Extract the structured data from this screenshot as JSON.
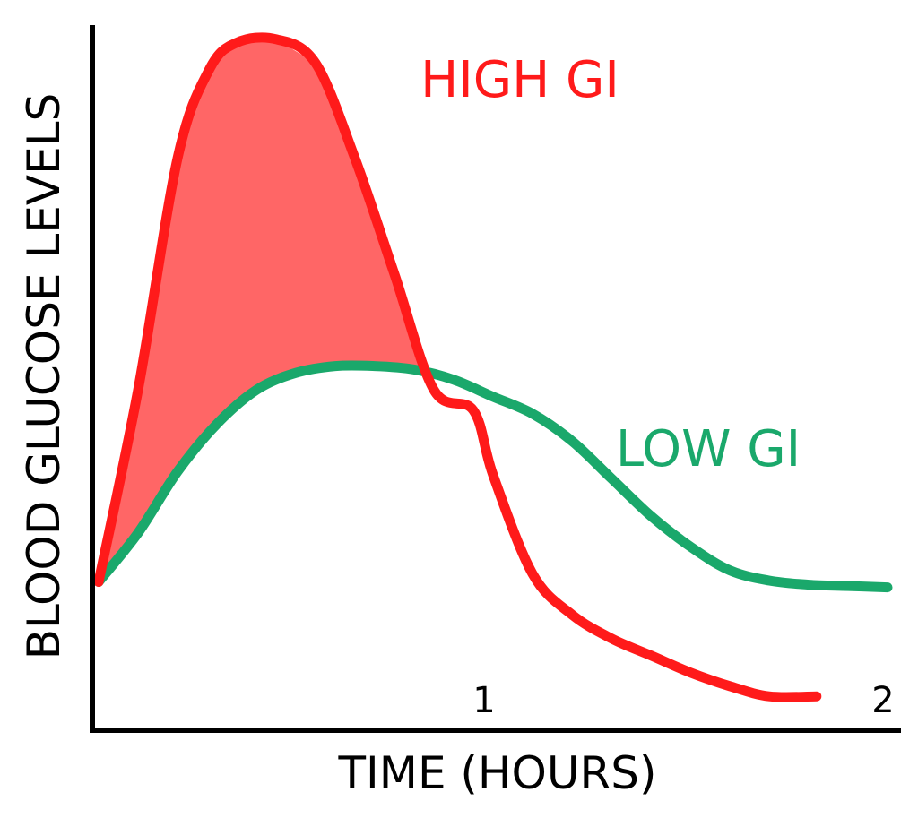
{
  "chart_data": {
    "type": "line",
    "title": "",
    "xlabel": "TIME (HOURS)",
    "ylabel": "BLOOD GLUCOSE LEVELS",
    "x_ticks": [
      {
        "value": 1,
        "label": "1"
      },
      {
        "value": 2,
        "label": "2"
      }
    ],
    "y_ticks": [],
    "xlim": [
      0,
      2
    ],
    "ylim": [
      0,
      100
    ],
    "grid": false,
    "legend": "none",
    "shaded_between": [
      "HIGH GI",
      "LOW GI"
    ],
    "series": [
      {
        "name": "HIGH GI",
        "color": "#ff1a1a",
        "fill": "#ff6666",
        "x": [
          0.0,
          0.1,
          0.2,
          0.28,
          0.35,
          0.45,
          0.55,
          0.65,
          0.75,
          0.85,
          0.95,
          1.0,
          1.1,
          1.2,
          1.3,
          1.4,
          1.5,
          1.6,
          1.7,
          1.82
        ],
        "y": [
          19.8,
          48.0,
          82.0,
          95.0,
          99.0,
          99.5,
          96.0,
          82.0,
          65.0,
          48.0,
          45.0,
          35.5,
          21.0,
          15.0,
          11.5,
          9.0,
          6.5,
          4.5,
          3.0,
          3.0
        ]
      },
      {
        "name": "LOW GI",
        "color": "#1aa86b",
        "x": [
          0.0,
          0.1,
          0.2,
          0.3,
          0.4,
          0.5,
          0.6,
          0.7,
          0.8,
          0.9,
          1.0,
          1.1,
          1.2,
          1.3,
          1.4,
          1.5,
          1.6,
          1.7,
          1.8,
          1.9,
          2.0
        ],
        "y": [
          19.8,
          27.0,
          36.0,
          43.0,
          48.0,
          50.5,
          51.5,
          51.5,
          51.0,
          49.5,
          47.0,
          44.5,
          40.5,
          35.0,
          29.5,
          25.0,
          21.5,
          20.0,
          19.4,
          19.2,
          19.0
        ]
      }
    ]
  }
}
